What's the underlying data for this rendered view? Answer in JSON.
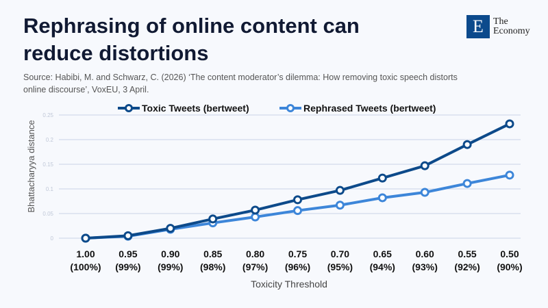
{
  "header": {
    "title": "Rephrasing of online content can reduce distortions",
    "source": "Source: Habibi, M. and Schwarz, C. (2026) ‘The content moderator’s dilemma: How removing toxic speech distorts online discourse’, VoxEU, 3 April.",
    "logo": {
      "letter": "E",
      "line1": "The",
      "line2": "Economy"
    }
  },
  "chart_data": {
    "type": "line",
    "xlabel": "Toxicity Threshold",
    "ylabel": "Bhattacharyya distance",
    "ylim": [
      0,
      0.25
    ],
    "yticks": [
      "0",
      "0.05",
      "0.1",
      "0.15",
      "0.2",
      "0.25"
    ],
    "categories": [
      [
        "1.00",
        "(100%)"
      ],
      [
        "0.95",
        "(99%)"
      ],
      [
        "0.90",
        "(99%)"
      ],
      [
        "0.85",
        "(98%)"
      ],
      [
        "0.80",
        "(97%)"
      ],
      [
        "0.75",
        "(96%)"
      ],
      [
        "0.70",
        "(95%)"
      ],
      [
        "0.65",
        "(94%)"
      ],
      [
        "0.60",
        "(93%)"
      ],
      [
        "0.55",
        "(92%)"
      ],
      [
        "0.50",
        "(90%)"
      ]
    ],
    "grid": true,
    "legend": "top",
    "series": [
      {
        "name": "Toxic Tweets (bertweet)",
        "color": "#0d4a8a",
        "values": [
          0,
          0.005,
          0.02,
          0.039,
          0.057,
          0.078,
          0.097,
          0.122,
          0.147,
          0.19,
          0.232
        ]
      },
      {
        "name": "Rephrased Tweets (bertweet)",
        "color": "#3d86d9",
        "values": [
          0,
          0.004,
          0.018,
          0.031,
          0.043,
          0.056,
          0.067,
          0.082,
          0.093,
          0.111,
          0.128
        ]
      }
    ]
  }
}
